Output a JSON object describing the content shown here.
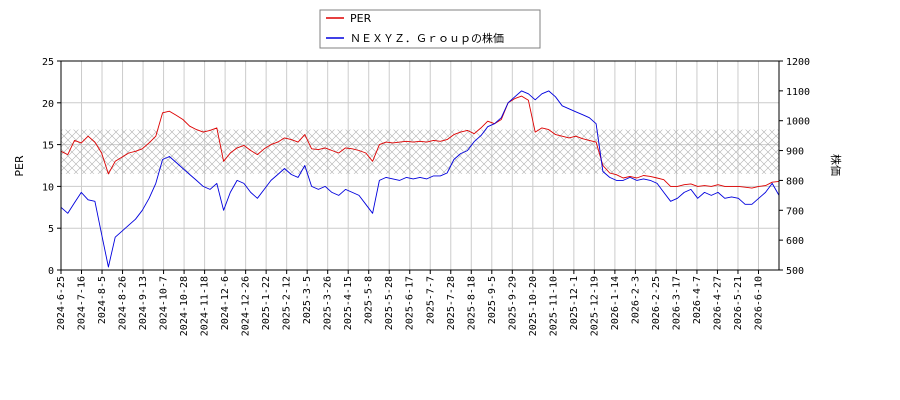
{
  "chart_data": {
    "type": "line",
    "legend": {
      "placement": "top-center",
      "entries": [
        "PER",
        "ＮＥＸＹＺ．Ｇｒｏｕｐの株価"
      ]
    },
    "grid": true,
    "y_left": {
      "label": "PER",
      "range": [
        0,
        25
      ],
      "ticks": [
        0,
        5,
        10,
        15,
        20,
        25
      ]
    },
    "y_right": {
      "label": "株価",
      "range": [
        500,
        1200
      ],
      "ticks": [
        500,
        600,
        700,
        800,
        900,
        1000,
        1100,
        1200
      ]
    },
    "x_ticks": [
      "2024-6-25",
      "2024-7-16",
      "2024-8-5",
      "2024-8-26",
      "2024-9-13",
      "2024-10-7",
      "2024-10-28",
      "2024-11-18",
      "2024-12-6",
      "2024-12-26",
      "2025-1-22",
      "2025-2-12",
      "2025-3-5",
      "2025-3-26",
      "2025-4-15",
      "2025-5-8",
      "2025-5-28",
      "2025-6-17",
      "2025-7-7",
      "2025-7-28",
      "2025-8-18",
      "2025-9-5",
      "2025-9-29",
      "2025-10-20",
      "2025-11-10",
      "2025-12-1",
      "2025-12-19",
      "2026-1-14",
      "2026-2-3",
      "2026-2-25",
      "2026-3-17",
      "2026-4-7",
      "2026-4-27",
      "2026-5-21",
      "2026-6-10"
    ],
    "per_band": [
      11.5,
      16.8
    ],
    "series": [
      {
        "name": "PER",
        "color": "#dd0000",
        "axis": "left",
        "values": [
          14.2,
          13.8,
          15.5,
          15.2,
          16.0,
          15.3,
          14.0,
          11.5,
          13.0,
          13.5,
          14.0,
          14.2,
          14.5,
          15.2,
          16.0,
          18.8,
          19.0,
          18.5,
          18.0,
          17.2,
          16.8,
          16.5,
          16.7,
          17.0,
          13.0,
          14.0,
          14.6,
          14.9,
          14.3,
          13.8,
          14.5,
          15.0,
          15.3,
          15.8,
          15.6,
          15.3,
          16.2,
          14.5,
          14.4,
          14.6,
          14.3,
          14.0,
          14.6,
          14.5,
          14.3,
          14.0,
          13.0,
          15.0,
          15.3,
          15.2,
          15.3,
          15.4,
          15.3,
          15.4,
          15.3,
          15.5,
          15.4,
          15.6,
          16.2,
          16.5,
          16.7,
          16.3,
          17.0,
          17.8,
          17.5,
          18.0,
          20.0,
          20.5,
          20.8,
          20.3,
          16.5,
          17.0,
          16.8,
          16.2,
          16.0,
          15.8,
          16.0,
          15.7,
          15.5,
          15.3,
          12.5,
          11.6,
          11.4,
          11.0,
          11.2,
          11.0,
          11.3,
          11.2,
          11.0,
          10.8,
          10.0,
          10.0,
          10.2,
          10.3,
          10.0,
          10.1,
          10.0,
          10.2,
          10.0,
          10.0,
          10.0,
          9.9,
          9.8,
          10.0,
          10.1,
          10.5,
          10.6
        ]
      },
      {
        "name": "ＮＥＸＹＺ．Ｇｒｏｕｐの株価",
        "color": "#0000dd",
        "axis": "right",
        "values": [
          710,
          690,
          725,
          760,
          735,
          730,
          620,
          510,
          610,
          630,
          650,
          670,
          700,
          740,
          790,
          870,
          880,
          860,
          840,
          820,
          800,
          780,
          770,
          790,
          700,
          760,
          800,
          790,
          760,
          740,
          770,
          800,
          820,
          840,
          820,
          810,
          850,
          780,
          770,
          780,
          760,
          750,
          770,
          760,
          750,
          720,
          690,
          800,
          810,
          805,
          800,
          810,
          805,
          810,
          805,
          815,
          815,
          825,
          870,
          890,
          900,
          930,
          950,
          980,
          990,
          1010,
          1060,
          1080,
          1100,
          1090,
          1070,
          1090,
          1100,
          1080,
          1050,
          1040,
          1030,
          1020,
          1010,
          990,
          830,
          810,
          800,
          800,
          810,
          800,
          805,
          800,
          790,
          760,
          730,
          740,
          760,
          770,
          740,
          760,
          750,
          760,
          740,
          745,
          740,
          720,
          720,
          740,
          760,
          790,
          750
        ]
      }
    ]
  }
}
